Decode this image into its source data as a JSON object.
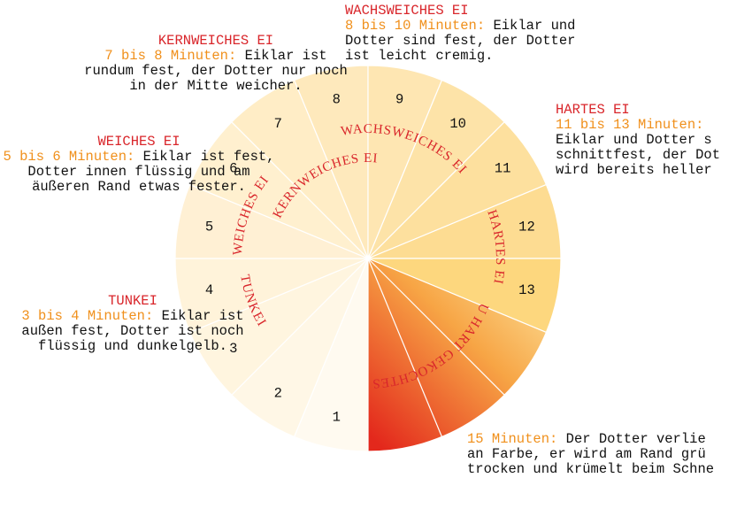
{
  "segments": [
    "1",
    "2",
    "3",
    "4",
    "5",
    "6",
    "7",
    "8",
    "9",
    "10",
    "11",
    "12",
    "13"
  ],
  "arc_labels": [
    "WACHSWEICHES EI",
    "KERNWEICHES EI",
    "WEICHES EI",
    "TUNKEI",
    "HARTES EI",
    "ZU HART GEKOCHTES EI"
  ],
  "annotations": [
    {
      "title": "WACHSWEICHES EI",
      "time": "8 bis 10 Minuten:",
      "lines": [
        "Eiklar und",
        "Dotter sind fest, der Dotter",
        "ist leicht cremig."
      ]
    },
    {
      "title": "KERNWEICHES EI",
      "time": "7 bis 8 Minuten:",
      "lines": [
        "Eiklar ist",
        "rundum fest, der Dotter nur noch",
        "in der Mitte weicher."
      ]
    },
    {
      "title": "WEICHES EI",
      "time": "5 bis 6 Minuten:",
      "lines": [
        "Eiklar ist fest,",
        "Dotter innen flüssig und am",
        "äußeren Rand etwas fester."
      ]
    },
    {
      "title": "TUNKEI",
      "time": "3 bis 4 Minuten:",
      "lines": [
        "Eiklar ist",
        "außen fest, Dotter ist noch",
        "flüssig und dunkelgelb."
      ]
    },
    {
      "title": "HARTES EI",
      "time": "11 bis 13 Minuten:",
      "lines": [
        "",
        "Eiklar und Dotter s",
        "schnittfest, der Dot",
        "wird bereits heller"
      ]
    },
    {
      "time": "15 Minuten:",
      "lines": [
        "Der Dotter verlie",
        "an Farbe, er wird am Rand grü",
        "trocken und krümelt beim Schne"
      ]
    }
  ]
}
